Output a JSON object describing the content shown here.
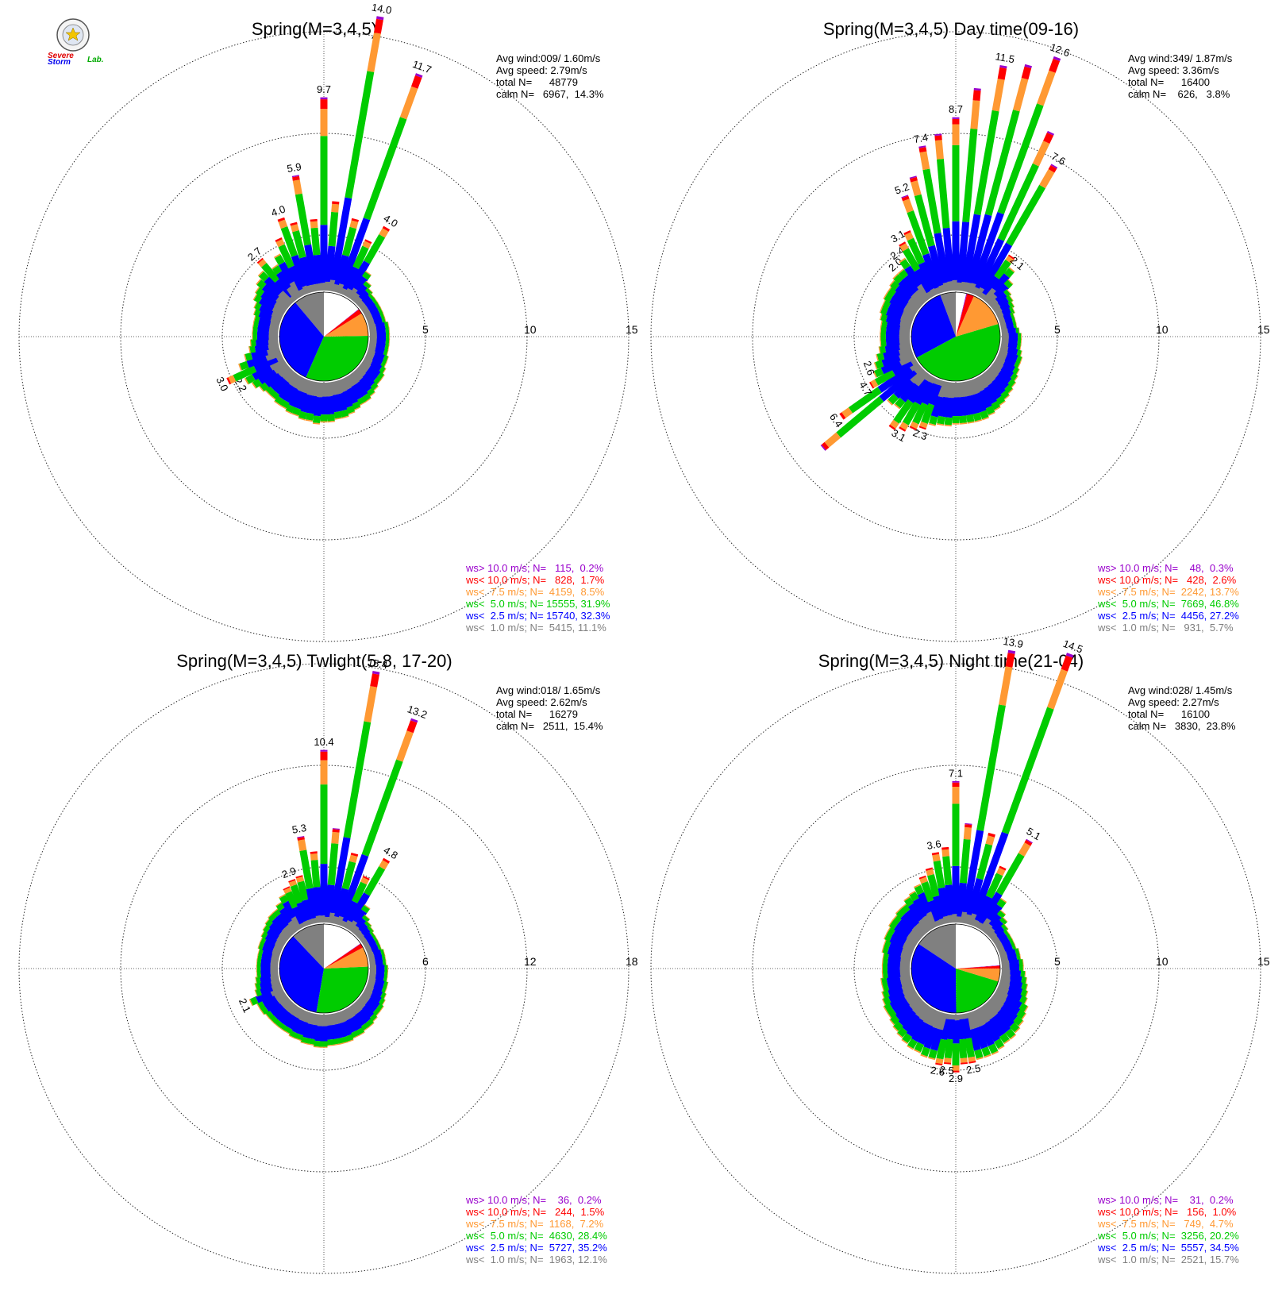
{
  "logo": {
    "text_severe": "Severe",
    "text_storm": "Storm",
    "text_lab": "Lab."
  },
  "colors": {
    "gt10": "#9900cc",
    "lt10": "#ff0000",
    "lt7_5": "#ff9933",
    "lt5": "#00cc00",
    "lt2_5": "#0000ff",
    "lt1": "#808080",
    "calm_pie": "#ffffff",
    "ring": "#222222"
  },
  "chart_data": [
    {
      "type": "windrose",
      "title": "Spring(M=3,4,5)",
      "stats": [
        "Avg wind:009/ 1.60m/s",
        "Avg speed: 2.79m/s",
        "total N=      48779",
        "calm N=   6967,  14.3%"
      ],
      "ring_values": [
        5,
        10,
        15
      ],
      "ring_labels": [
        "5",
        "10",
        "15"
      ],
      "legend": [
        "ws> 10.0 m/s; N=   115,  0.2%",
        "ws< 10.0 m/s; N=   828,  1.7%",
        "ws<  7.5 m/s; N=  4159,  8.5%",
        "ws<  5.0 m/s; N= 15555, 31.9%",
        "ws<  2.5 m/s; N= 15740, 32.3%",
        "ws<  1.0 m/s; N=  5415, 11.1%"
      ],
      "pie": [
        11.1,
        32.3,
        31.9,
        8.5,
        1.7,
        0.2,
        14.3
      ],
      "directions": [
        -40,
        -35,
        -30,
        -25,
        -20,
        -15,
        -10,
        -5,
        0,
        5,
        10,
        15,
        20,
        25,
        30,
        35,
        40,
        45,
        50,
        55,
        60,
        65,
        70,
        75,
        80,
        85,
        90,
        95,
        100,
        105,
        110,
        115,
        120,
        125,
        130,
        135,
        140,
        145,
        150,
        155,
        160,
        165,
        170,
        175,
        180,
        185,
        190,
        195,
        200,
        205,
        210,
        215,
        220,
        225,
        230,
        235,
        240,
        245,
        250,
        255,
        260,
        265,
        270,
        275,
        280,
        285,
        290,
        295,
        300,
        305,
        310,
        315
      ],
      "totals": [
        2.7,
        2.0,
        2.4,
        3.1,
        4.0,
        3.6,
        5.9,
        3.6,
        9.7,
        4.5,
        14.0,
        3.8,
        11.7,
        3.0,
        4.0,
        1.6,
        1.2,
        1.0,
        0.9,
        0.9,
        0.9,
        0.9,
        0.9,
        0.9,
        1.0,
        1.0,
        1.0,
        1.0,
        1.0,
        1.0,
        1.1,
        1.1,
        1.2,
        1.3,
        1.3,
        1.4,
        1.5,
        1.6,
        1.6,
        1.7,
        1.8,
        1.9,
        1.9,
        2.0,
        2.0,
        2.1,
        2.0,
        2.0,
        1.9,
        1.9,
        1.8,
        1.8,
        1.7,
        1.7,
        1.8,
        2.0,
        2.2,
        3.0,
        2.2,
        1.8,
        1.5,
        1.4,
        1.3,
        1.3,
        1.3,
        1.3,
        1.4,
        1.5,
        1.7,
        1.8,
        2.0,
        2.2
      ],
      "labels": {
        "-40": "2.7",
        "-20": "4.0",
        "-10": "5.9",
        "0": "9.7",
        "10": "14.0",
        "20": "11.7",
        "30": "4.0",
        "245": "3.0",
        "240": "2.2"
      },
      "label_angles": [
        -40,
        -20,
        -10,
        0,
        10,
        20,
        30,
        245,
        240
      ]
    },
    {
      "type": "windrose",
      "title": "Spring(M=3,4,5) Day time(09-16)",
      "stats": [
        "Avg wind:349/ 1.87m/s",
        "Avg speed: 3.36m/s",
        "total N=      16400",
        "calm N=    626,   3.8%"
      ],
      "ring_values": [
        5,
        10,
        15
      ],
      "ring_labels": [
        "5",
        "10",
        "15"
      ],
      "legend": [
        "ws> 10.0 m/s; N=    48,  0.3%",
        "ws< 10.0 m/s; N=   428,  2.6%",
        "ws<  7.5 m/s; N=  2242, 13.7%",
        "ws<  5.0 m/s; N=  7669, 46.8%",
        "ws<  2.5 m/s; N=  4456, 27.2%",
        "ws<  1.0 m/s; N=   931,  5.7%"
      ],
      "pie": [
        5.7,
        27.2,
        46.8,
        13.7,
        2.6,
        0.3,
        3.8
      ],
      "directions": [
        -40,
        -35,
        -30,
        -25,
        -20,
        -15,
        -10,
        -5,
        0,
        5,
        10,
        15,
        20,
        25,
        30,
        35,
        40,
        45,
        50,
        55,
        60,
        65,
        70,
        75,
        80,
        85,
        90,
        95,
        100,
        105,
        110,
        115,
        120,
        125,
        130,
        135,
        140,
        145,
        150,
        155,
        160,
        165,
        170,
        175,
        180,
        185,
        190,
        195,
        200,
        205,
        210,
        215,
        220,
        225,
        230,
        235,
        240,
        245,
        250,
        255,
        260,
        265,
        270,
        275,
        280,
        285,
        290,
        295,
        300,
        305,
        310,
        315
      ],
      "totals": [
        2.0,
        2.4,
        3.1,
        3.5,
        5.2,
        6.0,
        7.4,
        7.9,
        8.7,
        10.2,
        11.5,
        11.8,
        12.6,
        9.0,
        7.6,
        2.6,
        2.1,
        1.6,
        1.2,
        1.1,
        1.0,
        0.9,
        0.8,
        0.8,
        0.8,
        0.9,
        1.0,
        1.0,
        1.0,
        1.1,
        1.2,
        1.2,
        1.3,
        1.4,
        1.5,
        1.6,
        1.7,
        1.8,
        1.9,
        2.0,
        2.1,
        2.1,
        2.1,
        2.1,
        2.1,
        2.2,
        2.2,
        2.3,
        2.6,
        2.8,
        3.1,
        3.3,
        2.3,
        2.4,
        6.4,
        4.7,
        2.6,
        2.2,
        2.0,
        1.8,
        1.6,
        1.5,
        1.5,
        1.5,
        1.5,
        1.6,
        1.7,
        1.7,
        1.8,
        1.8,
        1.9,
        2.0
      ],
      "labels": {
        "-40": "2.0",
        "-35": "2.4",
        "-30": "3.1",
        "-20": "5.2",
        "-10": "7.4",
        "0": "8.7",
        "10": "11.5",
        "20": "12.6",
        "30": "7.6",
        "40": "2.1",
        "210": "3.1",
        "200": "2.3",
        "235": "6.4",
        "240": "4.7",
        "250": "2.6"
      },
      "label_angles": [
        -40,
        -35,
        -30,
        -20,
        -10,
        0,
        10,
        20,
        30,
        40,
        210,
        200,
        235,
        240,
        250
      ]
    },
    {
      "type": "windrose",
      "title": "Spring(M=3,4,5) Twlight(5-8, 17-20)",
      "stats": [
        "Avg wind:018/ 1.65m/s",
        "Avg speed: 2.62m/s",
        "total N=      16279",
        "calm N=   2511,  15.4%"
      ],
      "ring_values": [
        6,
        12,
        18
      ],
      "ring_labels": [
        "6",
        "12",
        "18"
      ],
      "legend": [
        "ws> 10.0 m/s; N=    36,  0.2%",
        "ws< 10.0 m/s; N=   244,  1.5%",
        "ws<  7.5 m/s; N=  1168,  7.2%",
        "ws<  5.0 m/s; N=  4630, 28.4%",
        "ws<  2.5 m/s; N=  5727, 35.2%",
        "ws<  1.0 m/s; N=  1963, 12.1%"
      ],
      "pie": [
        12.1,
        35.2,
        28.4,
        7.2,
        1.5,
        0.2,
        15.4
      ],
      "directions": [
        -40,
        -35,
        -30,
        -25,
        -20,
        -15,
        -10,
        -5,
        0,
        5,
        10,
        15,
        20,
        25,
        30,
        35,
        40,
        45,
        50,
        55,
        60,
        65,
        70,
        75,
        80,
        85,
        90,
        95,
        100,
        105,
        110,
        115,
        120,
        125,
        130,
        135,
        140,
        145,
        150,
        155,
        160,
        165,
        170,
        175,
        180,
        185,
        190,
        195,
        200,
        205,
        210,
        215,
        220,
        225,
        230,
        235,
        240,
        245,
        250,
        255,
        260,
        265,
        270,
        275,
        280,
        285,
        290,
        295,
        300,
        305,
        310,
        315
      ],
      "totals": [
        1.8,
        2.0,
        2.3,
        2.6,
        2.9,
        3.0,
        5.3,
        4.3,
        10.4,
        5.7,
        15.4,
        4.4,
        13.2,
        3.3,
        4.8,
        1.8,
        1.3,
        1.1,
        1.0,
        0.9,
        0.9,
        0.9,
        0.9,
        1.0,
        1.0,
        1.0,
        1.1,
        1.1,
        1.1,
        1.2,
        1.2,
        1.3,
        1.4,
        1.5,
        1.5,
        1.6,
        1.7,
        1.7,
        1.8,
        1.8,
        1.9,
        1.9,
        1.9,
        1.9,
        2.0,
        2.0,
        1.9,
        1.9,
        1.8,
        1.8,
        1.7,
        1.7,
        1.7,
        1.7,
        1.7,
        1.8,
        1.8,
        2.1,
        1.6,
        1.5,
        1.4,
        1.3,
        1.3,
        1.3,
        1.3,
        1.3,
        1.4,
        1.4,
        1.5,
        1.6,
        1.7,
        1.8
      ],
      "labels": {
        "-20": "2.9",
        "-10": "5.3",
        "0": "10.4",
        "10": "15.4",
        "20": "13.2",
        "30": "4.8",
        "245": "2.1"
      },
      "label_angles": [
        -20,
        -10,
        0,
        10,
        20,
        30,
        245
      ]
    },
    {
      "type": "windrose",
      "title": "Spring(M=3,4,5) Night time(21-04)",
      "stats": [
        "Avg wind:028/ 1.45m/s",
        "Avg speed: 2.27m/s",
        "total N=      16100",
        "calm N=   3830,  23.8%"
      ],
      "ring_values": [
        5,
        10,
        15
      ],
      "ring_labels": [
        "5",
        "10",
        "15"
      ],
      "legend": [
        "ws> 10.0 m/s; N=    31,  0.2%",
        "ws< 10.0 m/s; N=   156,  1.0%",
        "ws<  7.5 m/s; N=   749,  4.7%",
        "ws<  5.0 m/s; N=  3256, 20.2%",
        "ws<  2.5 m/s; N=  5557, 34.5%",
        "ws<  1.0 m/s; N=  2521, 15.7%"
      ],
      "pie": [
        15.7,
        34.5,
        20.2,
        4.7,
        1.0,
        0.2,
        23.8
      ],
      "directions": [
        -40,
        -35,
        -30,
        -25,
        -20,
        -15,
        -10,
        -5,
        0,
        5,
        10,
        15,
        20,
        25,
        30,
        35,
        40,
        45,
        50,
        55,
        60,
        65,
        70,
        75,
        80,
        85,
        90,
        95,
        100,
        105,
        110,
        115,
        120,
        125,
        130,
        135,
        140,
        145,
        150,
        155,
        160,
        165,
        170,
        175,
        180,
        185,
        190,
        195,
        200,
        205,
        210,
        215,
        220,
        225,
        230,
        235,
        240,
        245,
        250,
        255,
        260,
        265,
        270,
        275,
        280,
        285,
        290,
        295,
        300,
        305,
        310,
        315
      ],
      "totals": [
        1.8,
        2.0,
        2.1,
        2.3,
        2.6,
        2.9,
        3.6,
        3.8,
        7.1,
        5.0,
        13.9,
        4.7,
        14.5,
        3.3,
        5.1,
        1.9,
        1.4,
        1.2,
        1.0,
        0.9,
        0.9,
        0.9,
        0.9,
        1.0,
        1.0,
        1.1,
        1.1,
        1.2,
        1.3,
        1.4,
        1.5,
        1.6,
        1.8,
        1.9,
        2.0,
        2.1,
        2.2,
        2.2,
        2.3,
        2.4,
        2.4,
        2.4,
        2.5,
        2.5,
        2.9,
        2.5,
        2.6,
        2.4,
        2.4,
        2.3,
        2.3,
        2.2,
        2.1,
        2.0,
        1.9,
        1.8,
        1.8,
        1.7,
        1.6,
        1.5,
        1.5,
        1.4,
        1.4,
        1.4,
        1.4,
        1.5,
        1.5,
        1.6,
        1.6,
        1.7,
        1.7,
        1.8
      ],
      "labels": {
        "-10": "3.6",
        "0": "7.1",
        "10": "13.9",
        "20": "14.5",
        "30": "5.1",
        "170": "2.5",
        "180": "2.9",
        "185": "2.5",
        "190": "2.6"
      },
      "label_angles": [
        -10,
        0,
        10,
        20,
        30,
        170,
        180,
        185,
        190
      ]
    }
  ]
}
